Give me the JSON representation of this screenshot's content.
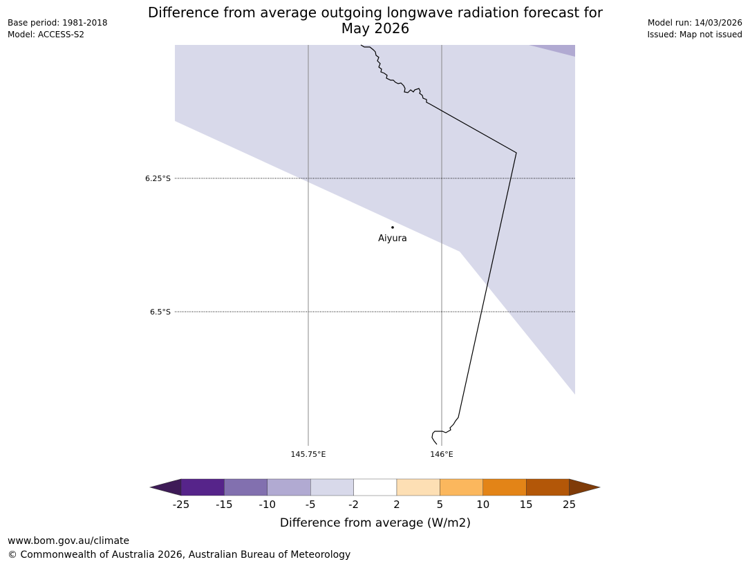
{
  "header": {
    "title_line1": "Difference from average outgoing longwave radiation forecast for",
    "title_line2": "May 2026",
    "base_period": "Base period: 1981-2018",
    "model": "Model: ACCESS-S2",
    "model_run": "Model run: 14/03/2026",
    "issued": "Issued: Map not issued"
  },
  "map": {
    "lat_labels": [
      "6.25°S",
      "6.5°S"
    ],
    "lon_labels": [
      "145.75°E",
      "146°E"
    ],
    "place": "Aiyura",
    "shading_color": "#d8d9ea",
    "corner_shading_color": "#b1aad2"
  },
  "colorbar": {
    "title": "Difference from average (W/m2)",
    "ticks": [
      "-25",
      "-15",
      "-10",
      "-5",
      "-2",
      "2",
      "5",
      "10",
      "15",
      "25"
    ],
    "colors": [
      "#3e1b57",
      "#56248a",
      "#8270af",
      "#b1aad2",
      "#d8d9ea",
      "#ffffff",
      "#fddfb4",
      "#fbb75d",
      "#e38417",
      "#b35708",
      "#7f3b08"
    ]
  },
  "footer": {
    "url": "www.bom.gov.au/climate",
    "copyright": "© Commonwealth of Australia 2026, Australian Bureau of Meteorology"
  }
}
